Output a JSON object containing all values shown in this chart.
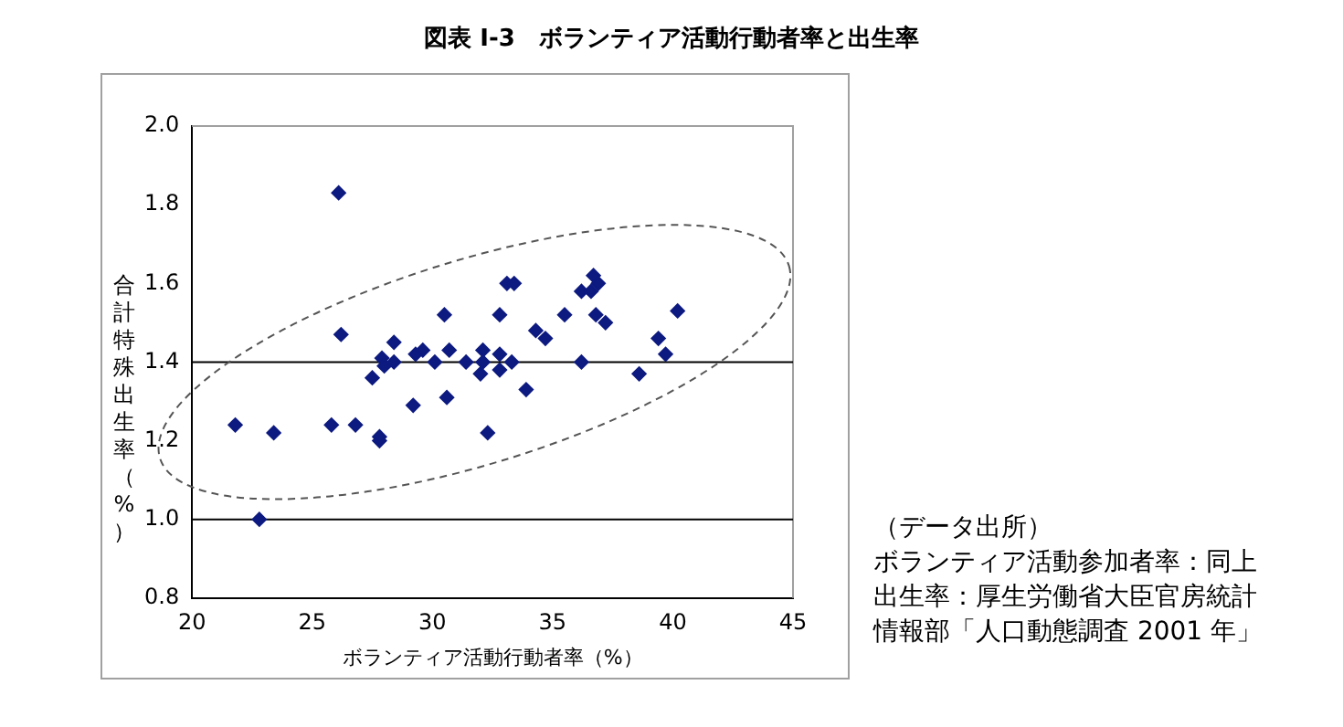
{
  "chart_data": {
    "type": "scatter",
    "title": "図表 I-3　ボランティア活動行動者率と出生率",
    "xlabel": "ボランティア活動行動者率（%）",
    "ylabel": "合計特殊出生率（%）",
    "annotations": [
      "（データ出所）",
      "ボランティア活動参加者率：同上",
      "出生率：厚生労働省大臣官房統計",
      "情報部「人口動態調査 2001 年」"
    ],
    "xlim": [
      20,
      45
    ],
    "xticks": [
      20,
      25,
      30,
      35,
      40,
      45
    ],
    "ylim": [
      0.8,
      2.0
    ],
    "yticks": [
      0.8,
      {
        "value": 1,
        "label": "1.0"
      },
      1.2,
      1.4,
      1.6,
      1.8,
      {
        "value": 2,
        "label": "2.0"
      }
    ],
    "marker": "diamond",
    "legend": false,
    "grid": false,
    "ref_lines": [
      {
        "axis": "y",
        "value": 1.4,
        "color": "#000000"
      },
      {
        "axis": "y",
        "value": 1.0,
        "color": "#000000"
      }
    ],
    "series": [
      {
        "color": "#0d1a80",
        "x": [
          21.8,
          23.4,
          25.8,
          26.1,
          26.2,
          26.8,
          22.8,
          27.5,
          27.8,
          27.8,
          27.9,
          28.0,
          28.4,
          28.4,
          29.2,
          29.3,
          29.6,
          30.1,
          30.5,
          30.6,
          30.7,
          31.4,
          32.0,
          32.1,
          32.1,
          32.3,
          32.8,
          32.8,
          32.8,
          33.1,
          33.4,
          33.3,
          33.9,
          34.3,
          34.7,
          35.5,
          36.2,
          36.2,
          36.6,
          36.7,
          36.9,
          36.8,
          37.2,
          38.6,
          39.4,
          39.7,
          40.2
        ],
        "values": [
          1.24,
          1.22,
          1.24,
          1.83,
          1.47,
          1.24,
          1.0,
          1.36,
          1.2,
          1.21,
          1.41,
          1.39,
          1.4,
          1.45,
          1.29,
          1.42,
          1.43,
          1.4,
          1.52,
          1.31,
          1.43,
          1.4,
          1.37,
          1.43,
          1.4,
          1.22,
          1.42,
          1.38,
          1.52,
          1.6,
          1.6,
          1.4,
          1.33,
          1.48,
          1.46,
          1.52,
          1.58,
          1.4,
          1.58,
          1.62,
          1.6,
          1.52,
          1.5,
          1.37,
          1.46,
          1.42,
          1.53
        ]
      }
    ]
  }
}
